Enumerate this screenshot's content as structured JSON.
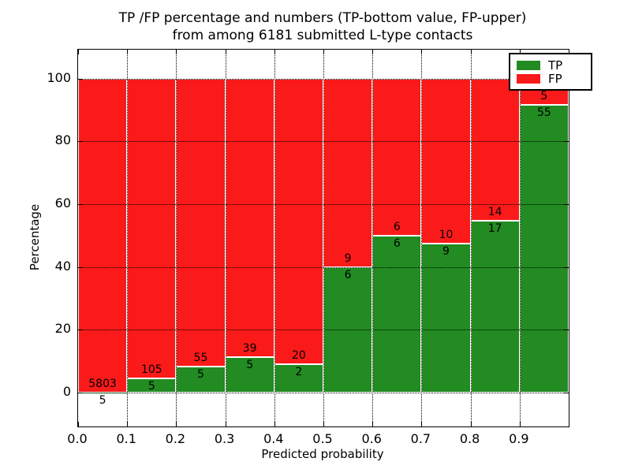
{
  "figure": {
    "title_line1": "TP /FP percentage and numbers (TP-bottom value, FP-upper)",
    "title_line2": "from among 6181 submitted L-type contacts"
  },
  "chart_data": {
    "type": "bar",
    "subtype": "stacked-percentage",
    "title": "TP /FP percentage and numbers (TP-bottom value, FP-upper)\nfrom among 6181 submitted L-type contacts",
    "xlabel": "Predicted probability",
    "ylabel": "Percentage",
    "xlim": [
      0.0,
      1.0
    ],
    "ylim": [
      -10.8,
      109.2
    ],
    "grid": "dotted",
    "total_contacts": 6181,
    "categories": [
      "0.0-0.1",
      "0.1-0.2",
      "0.2-0.3",
      "0.3-0.4",
      "0.4-0.5",
      "0.5-0.6",
      "0.6-0.7",
      "0.7-0.8",
      "0.8-0.9",
      "0.9-1.0"
    ],
    "series": [
      {
        "name": "TP",
        "color": "#228B22",
        "values": [
          5,
          5,
          5,
          5,
          2,
          6,
          6,
          9,
          17,
          55
        ]
      },
      {
        "name": "FP",
        "color": "#FB1A1A",
        "values": [
          5803,
          105,
          55,
          39,
          20,
          9,
          6,
          10,
          14,
          5
        ]
      }
    ],
    "bins": [
      {
        "x_start": 0.0,
        "x_end": 0.1,
        "tp": 5,
        "fp": 5803
      },
      {
        "x_start": 0.1,
        "x_end": 0.2,
        "tp": 5,
        "fp": 105
      },
      {
        "x_start": 0.2,
        "x_end": 0.3,
        "tp": 5,
        "fp": 55
      },
      {
        "x_start": 0.3,
        "x_end": 0.4,
        "tp": 5,
        "fp": 39
      },
      {
        "x_start": 0.4,
        "x_end": 0.5,
        "tp": 2,
        "fp": 20
      },
      {
        "x_start": 0.5,
        "x_end": 0.6,
        "tp": 6,
        "fp": 9
      },
      {
        "x_start": 0.6,
        "x_end": 0.7,
        "tp": 6,
        "fp": 6
      },
      {
        "x_start": 0.7,
        "x_end": 0.8,
        "tp": 9,
        "fp": 10
      },
      {
        "x_start": 0.8,
        "x_end": 0.9,
        "tp": 17,
        "fp": 14
      },
      {
        "x_start": 0.9,
        "x_end": 1.0,
        "tp": 55,
        "fp": 5
      }
    ],
    "xticks": [
      {
        "value": 0.0,
        "label": "0.0"
      },
      {
        "value": 0.1,
        "label": "0.1"
      },
      {
        "value": 0.2,
        "label": "0.2"
      },
      {
        "value": 0.3,
        "label": "0.3"
      },
      {
        "value": 0.4,
        "label": "0.4"
      },
      {
        "value": 0.5,
        "label": "0.5"
      },
      {
        "value": 0.6,
        "label": "0.6"
      },
      {
        "value": 0.7,
        "label": "0.7"
      },
      {
        "value": 0.8,
        "label": "0.8"
      },
      {
        "value": 0.9,
        "label": "0.9"
      }
    ],
    "yticks": [
      {
        "value": 0,
        "label": "0"
      },
      {
        "value": 20,
        "label": "20"
      },
      {
        "value": 40,
        "label": "40"
      },
      {
        "value": 60,
        "label": "60"
      },
      {
        "value": 80,
        "label": "80"
      },
      {
        "value": 100,
        "label": "100"
      }
    ],
    "legend": {
      "position": "upper right",
      "items": [
        {
          "label": "TP",
          "color": "#228B22"
        },
        {
          "label": "FP",
          "color": "#FB1A1A"
        }
      ]
    }
  }
}
